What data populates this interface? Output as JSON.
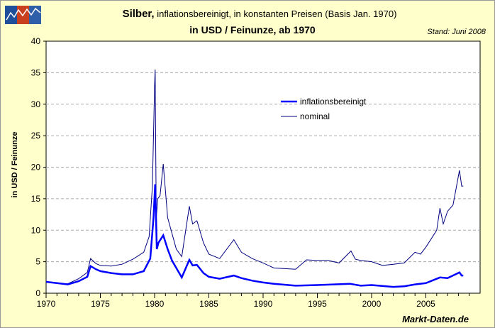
{
  "title_bold": "Silber,",
  "title_rest": " inflationsbereinigt, in konstanten Preisen (Basis Jan. 1970)",
  "subtitle": "in USD / Feinunze, ab 1970",
  "stand": "Stand: Juni 2008",
  "footer": "Markt-Daten.de",
  "logo": {
    "colors": [
      "#1F4E9A",
      "#C8401E",
      "#2E5FA8"
    ]
  },
  "chart_data": {
    "type": "line",
    "ylabel": "in USD / Feinunze",
    "xlim": [
      1970,
      2010
    ],
    "ylim": [
      0,
      40
    ],
    "xticks": [
      1970,
      1975,
      1980,
      1985,
      1990,
      1995,
      2000,
      2005
    ],
    "yticks": [
      0,
      5,
      10,
      15,
      20,
      25,
      30,
      35,
      40
    ],
    "grid": "horizontal dashed",
    "legend_placement": "top-center-right",
    "series": [
      {
        "name": "inflationsbereinigt",
        "color": "#0000FF",
        "width": 2.5,
        "x": [
          1970,
          1971,
          1972,
          1973,
          1973.8,
          1974.1,
          1974.6,
          1975,
          1976,
          1977,
          1978,
          1979,
          1979.6,
          1979.9,
          1980.05,
          1980.12,
          1980.2,
          1980.35,
          1980.8,
          1981.2,
          1981.6,
          1982,
          1982.5,
          1983.2,
          1983.5,
          1983.9,
          1984.5,
          1985,
          1986,
          1987.3,
          1988,
          1989,
          1990,
          1991,
          1993,
          1995,
          1998,
          1999,
          2000,
          2002,
          2003,
          2004,
          2005,
          2006.3,
          2007,
          2008.1,
          2008.3,
          2008.45
        ],
        "y": [
          1.8,
          1.6,
          1.4,
          1.9,
          2.6,
          4.3,
          3.8,
          3.5,
          3.2,
          3.0,
          3.0,
          3.5,
          5.5,
          12,
          17.3,
          13,
          7,
          8,
          9.2,
          7,
          5.2,
          4,
          2.5,
          5.3,
          4.4,
          4.5,
          3.2,
          2.6,
          2.3,
          2.8,
          2.4,
          2.0,
          1.7,
          1.5,
          1.2,
          1.3,
          1.5,
          1.2,
          1.3,
          1.0,
          1.1,
          1.4,
          1.6,
          2.5,
          2.4,
          3.3,
          2.8,
          2.8
        ]
      },
      {
        "name": "nominal",
        "color": "#000080",
        "width": 1,
        "x": [
          1970,
          1971,
          1972,
          1973,
          1973.8,
          1974.1,
          1974.6,
          1975,
          1976,
          1977,
          1978,
          1979,
          1979.5,
          1979.8,
          1980.0,
          1980.05,
          1980.15,
          1980.3,
          1980.5,
          1980.8,
          1981.2,
          1981.6,
          1982,
          1982.5,
          1983.2,
          1983.5,
          1983.9,
          1984.5,
          1985,
          1986,
          1987.3,
          1988,
          1989,
          1990,
          1991,
          1992,
          1993,
          1994,
          1995,
          1996,
          1997,
          1998.1,
          1998.5,
          1999,
          2000,
          2001,
          2002,
          2003,
          2004,
          2004.5,
          2005,
          2006,
          2006.3,
          2006.6,
          2007,
          2007.5,
          2008.1,
          2008.3,
          2008.45
        ],
        "y": [
          1.8,
          1.6,
          1.5,
          2.3,
          3.3,
          5.5,
          4.7,
          4.4,
          4.3,
          4.6,
          5.4,
          6.5,
          9,
          17,
          33,
          35.5,
          12,
          15,
          15.5,
          20.5,
          12,
          9.5,
          7,
          5.8,
          13.8,
          11,
          11.5,
          8,
          6.2,
          5.5,
          8.5,
          6.5,
          5.5,
          4.8,
          4.0,
          3.9,
          3.8,
          5.3,
          5.2,
          5.2,
          4.8,
          6.7,
          5.4,
          5.2,
          5.0,
          4.4,
          4.6,
          4.8,
          6.5,
          6.2,
          7.3,
          10,
          13.5,
          11,
          13,
          14,
          19.5,
          17,
          17
        ]
      }
    ]
  }
}
